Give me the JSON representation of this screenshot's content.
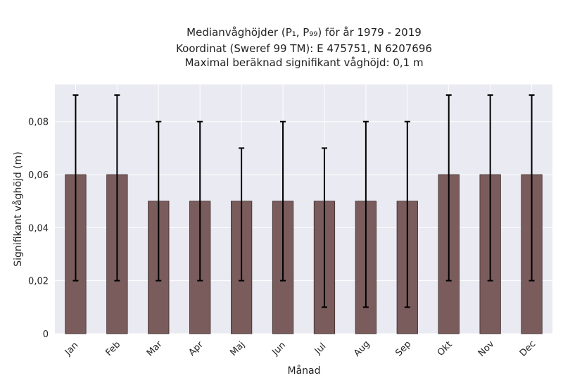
{
  "chart_data": {
    "type": "bar",
    "title_lines": [
      "Medianvåghöjder (P₁, P₉₉) för år 1979 - 2019",
      "Koordinat (Sweref 99 TM): E 475751, N 6207696",
      "Maximal beräknad signifikant våghöjd: 0,1 m"
    ],
    "xlabel": "Månad",
    "ylabel": "Signifikant våghöjd (m)",
    "categories": [
      "Jan",
      "Feb",
      "Mar",
      "Apr",
      "Maj",
      "Jun",
      "Jul",
      "Aug",
      "Sep",
      "Okt",
      "Nov",
      "Dec"
    ],
    "values": [
      0.06,
      0.06,
      0.05,
      0.05,
      0.05,
      0.05,
      0.05,
      0.05,
      0.05,
      0.06,
      0.06,
      0.06
    ],
    "error_low": [
      0.02,
      0.02,
      0.02,
      0.02,
      0.02,
      0.02,
      0.01,
      0.01,
      0.01,
      0.02,
      0.02,
      0.02
    ],
    "error_high": [
      0.09,
      0.09,
      0.08,
      0.08,
      0.07,
      0.08,
      0.07,
      0.08,
      0.08,
      0.09,
      0.09,
      0.09
    ],
    "ylim": [
      0,
      0.094
    ],
    "yticks": [
      0,
      0.02,
      0.04,
      0.06,
      0.08
    ],
    "ytick_labels": [
      "0",
      "0,02",
      "0,04",
      "0,06",
      "0,08"
    ],
    "grid": true,
    "colors": {
      "bar": "#7b5c5c",
      "bar_edge": "#3a2a2a",
      "error_bar": "#000000",
      "plot_background": "#eaeaf2",
      "grid": "#ffffff"
    }
  }
}
